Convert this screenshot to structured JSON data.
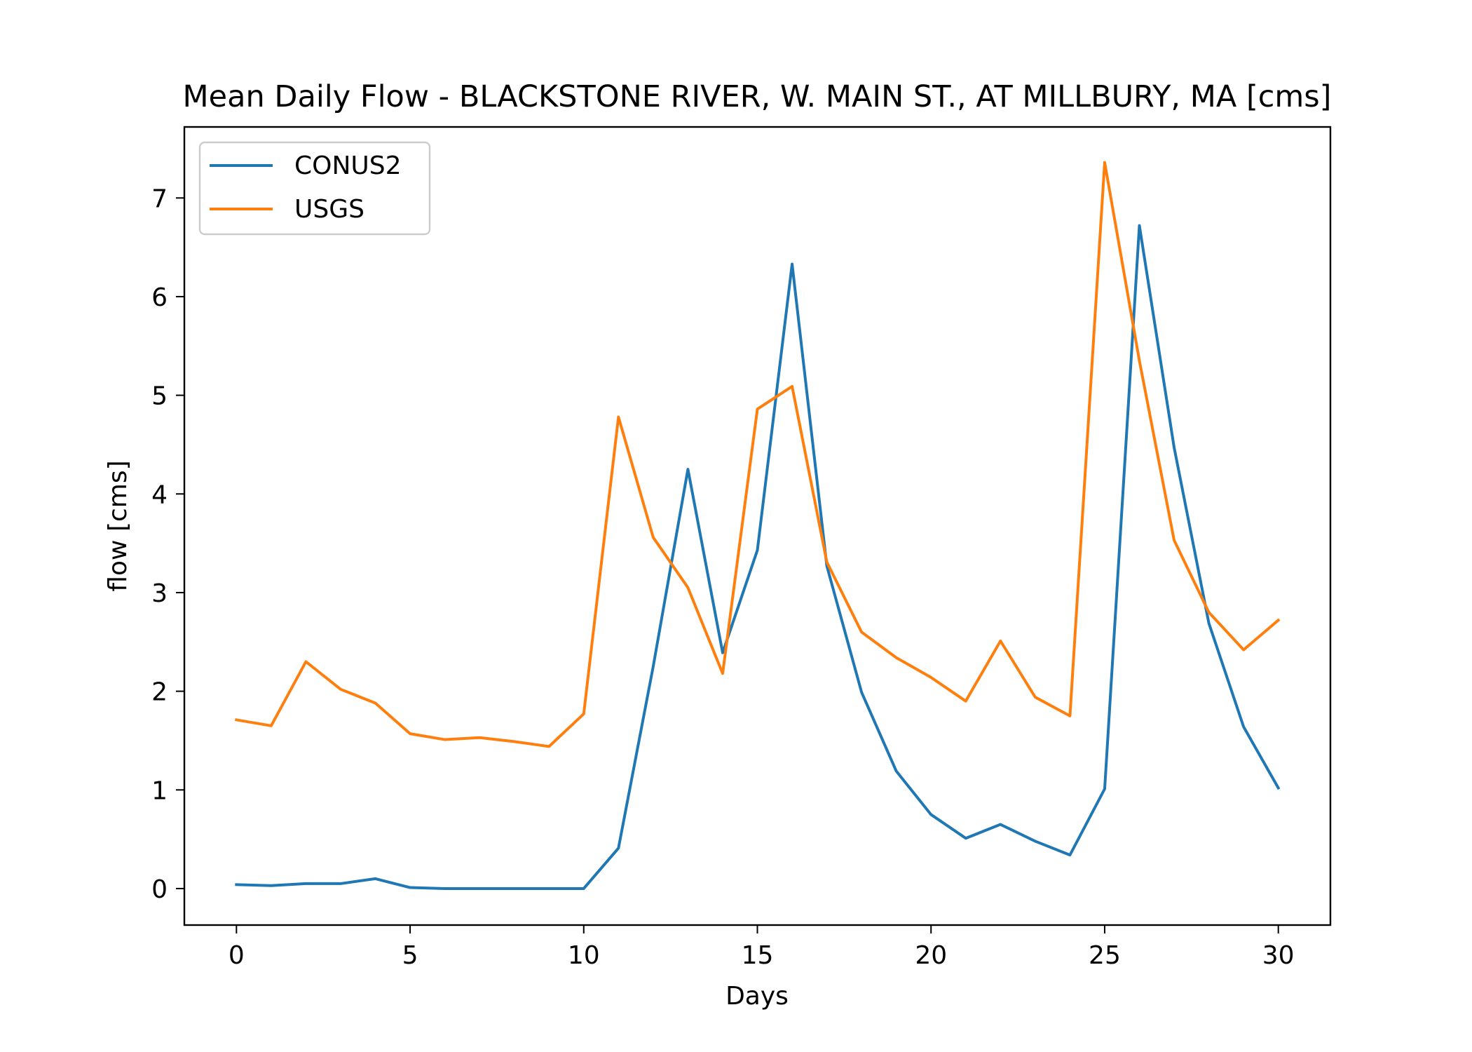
{
  "chart_data": {
    "type": "line",
    "title": "Mean Daily Flow - BLACKSTONE RIVER, W. MAIN ST., AT MILLBURY, MA [cms]",
    "xlabel": "Days",
    "ylabel": "flow [cms]",
    "xlim": [
      -1.5,
      31.5
    ],
    "ylim": [
      -0.37,
      7.72
    ],
    "xticks": [
      0,
      5,
      10,
      15,
      20,
      25,
      30
    ],
    "yticks": [
      0,
      1,
      2,
      3,
      4,
      5,
      6,
      7
    ],
    "grid": false,
    "legend_position": "upper-left",
    "x": [
      0,
      1,
      2,
      3,
      4,
      5,
      6,
      7,
      8,
      9,
      10,
      11,
      12,
      13,
      14,
      15,
      16,
      17,
      18,
      19,
      20,
      21,
      22,
      23,
      24,
      25,
      26,
      27,
      28,
      29,
      30
    ],
    "series": [
      {
        "name": "CONUS2",
        "color": "#1f77b4",
        "values": [
          0.04,
          0.03,
          0.05,
          0.05,
          0.1,
          0.01,
          0.0,
          0.0,
          0.0,
          0.0,
          0.0,
          0.41,
          2.25,
          4.25,
          2.39,
          3.43,
          6.33,
          3.27,
          1.99,
          1.19,
          0.75,
          0.51,
          0.65,
          0.48,
          0.34,
          1.01,
          6.72,
          4.47,
          2.69,
          1.64,
          1.02
        ]
      },
      {
        "name": "USGS",
        "color": "#ff7f0e",
        "values": [
          1.71,
          1.65,
          2.3,
          2.02,
          1.88,
          1.57,
          1.51,
          1.53,
          1.49,
          1.44,
          1.77,
          4.78,
          3.56,
          3.05,
          2.18,
          4.86,
          5.09,
          3.31,
          2.6,
          2.34,
          2.14,
          1.9,
          2.51,
          1.94,
          1.75,
          7.36,
          5.35,
          3.53,
          2.8,
          2.42,
          2.72
        ]
      }
    ]
  }
}
